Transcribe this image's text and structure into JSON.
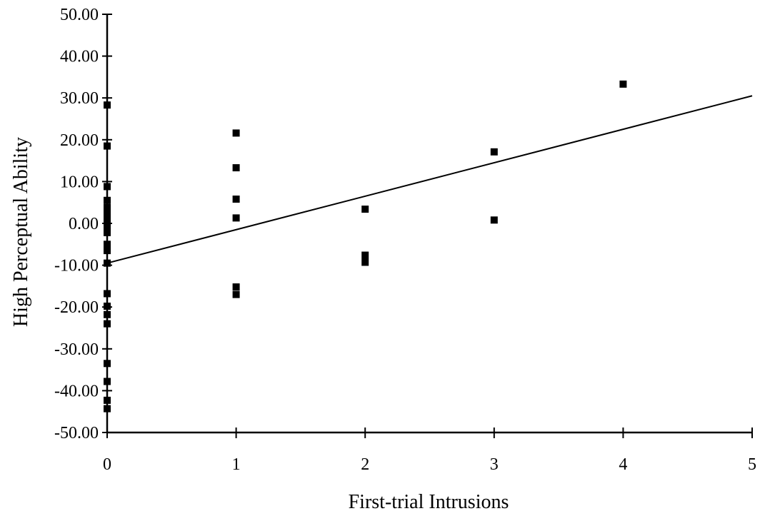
{
  "chart_data": {
    "type": "scatter",
    "title": "",
    "xlabel": "First-trial Intrusions",
    "ylabel": "High Perceptual Ability",
    "xlim": [
      0,
      5
    ],
    "ylim": [
      -50,
      50
    ],
    "x_ticks": [
      0,
      1,
      2,
      3,
      4,
      5
    ],
    "x_tick_labels": [
      "0",
      "1",
      "2",
      "3",
      "4",
      "5"
    ],
    "y_ticks": [
      50,
      40,
      30,
      20,
      10,
      0,
      -10,
      -20,
      -30,
      -40,
      -50
    ],
    "y_tick_labels": [
      "50.00",
      "40.00",
      "30.00",
      "20.00",
      "10.00",
      "0.00",
      "-10.00",
      "-20.00",
      "-30.00",
      "-40.00",
      "-50.00"
    ],
    "grid": false,
    "legend": "none",
    "marker": "square",
    "marker_color": "#000000",
    "points": [
      {
        "x": 0,
        "y": 28.3
      },
      {
        "x": 0,
        "y": 18.5
      },
      {
        "x": 0,
        "y": 8.8
      },
      {
        "x": 0,
        "y": 5.5
      },
      {
        "x": 0,
        "y": 3.8
      },
      {
        "x": 0,
        "y": 2.3
      },
      {
        "x": 0,
        "y": 0.8
      },
      {
        "x": 0,
        "y": -0.7
      },
      {
        "x": 0,
        "y": -2.2
      },
      {
        "x": 0,
        "y": -5.0
      },
      {
        "x": 0,
        "y": -6.5
      },
      {
        "x": 0,
        "y": -9.5
      },
      {
        "x": 0,
        "y": -16.8
      },
      {
        "x": 0,
        "y": -19.8
      },
      {
        "x": 0,
        "y": -21.8
      },
      {
        "x": 0,
        "y": -24.0
      },
      {
        "x": 0,
        "y": -33.5
      },
      {
        "x": 0,
        "y": -37.8
      },
      {
        "x": 0,
        "y": -42.3
      },
      {
        "x": 0,
        "y": -44.3
      },
      {
        "x": 1,
        "y": 21.6
      },
      {
        "x": 1,
        "y": 13.3
      },
      {
        "x": 1,
        "y": 5.8
      },
      {
        "x": 1,
        "y": 1.3
      },
      {
        "x": 1,
        "y": -15.2
      },
      {
        "x": 1,
        "y": -17.0
      },
      {
        "x": 2,
        "y": 3.4
      },
      {
        "x": 2,
        "y": -7.6
      },
      {
        "x": 2,
        "y": -9.3
      },
      {
        "x": 3,
        "y": 17.1
      },
      {
        "x": 3,
        "y": 0.8
      },
      {
        "x": 4,
        "y": 33.3
      }
    ],
    "trendline": {
      "type": "linear",
      "x": [
        0,
        5
      ],
      "y": [
        -9.5,
        30.5
      ],
      "color": "#000000"
    }
  }
}
